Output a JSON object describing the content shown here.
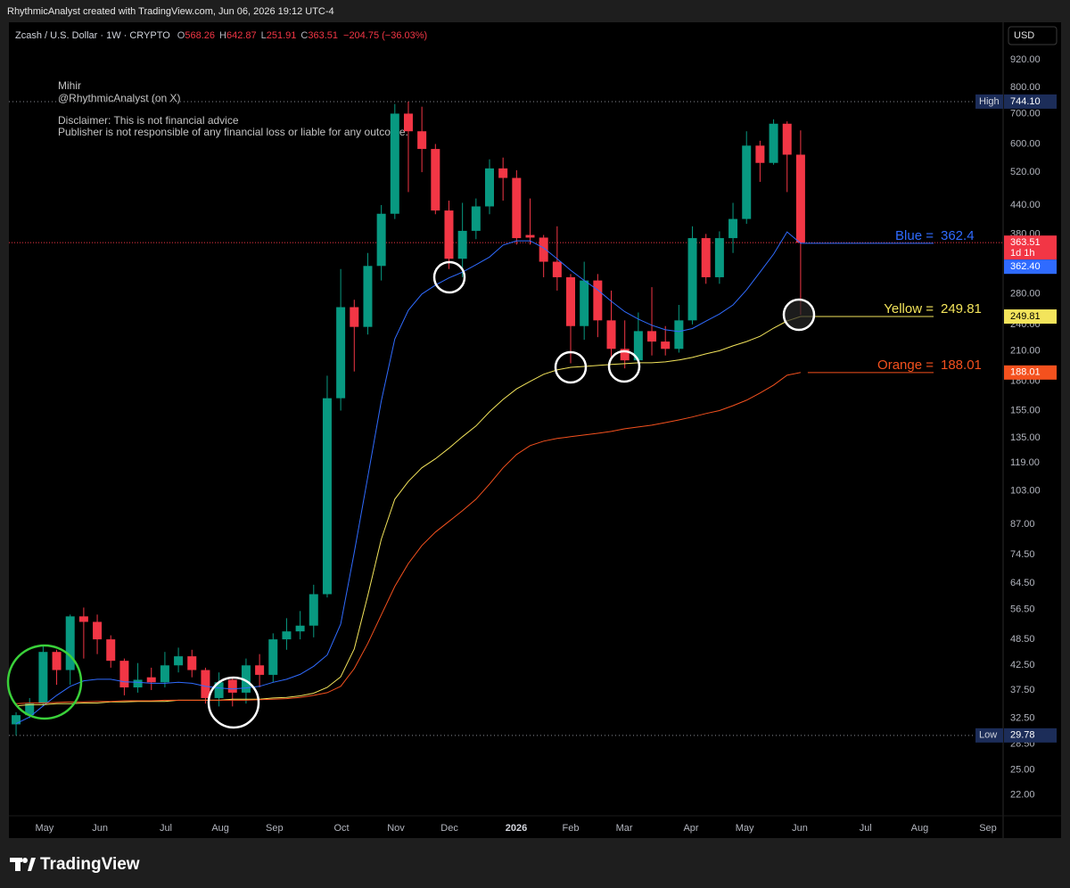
{
  "chart_data": {
    "type": "candlestick",
    "attribution": "RhythmicAnalyst created with TradingView.com, Jun 06, 2026 19:12 UTC-4",
    "title": "Zcash / U.S. Dollar · 1W · CRYPTO",
    "ohlc_letters": [
      "O",
      "H",
      "L",
      "C"
    ],
    "change": "−204.75 (−36.03%)",
    "annotations": [
      "Mihir",
      "@RhythmicAnalyst (on X)",
      "Disclaimer: This is not financial advice",
      "Publisher is not responsible of any financial loss or liable for any outcome."
    ],
    "currency": "USD",
    "brand": "TradingView",
    "log_scale": true,
    "up_color": "#089981",
    "down_color": "#f23645",
    "x": [
      0,
      1,
      2,
      3,
      4,
      5,
      6,
      7,
      8,
      9,
      10,
      11,
      12,
      13,
      14,
      15,
      16,
      17,
      18,
      19,
      20,
      21,
      22,
      23,
      24,
      25,
      26,
      27,
      28,
      29,
      30,
      31,
      32,
      33,
      34,
      35,
      36,
      37,
      38,
      39,
      40,
      41,
      42,
      43,
      44,
      45,
      46,
      47,
      48,
      49,
      50,
      51,
      52,
      53,
      54,
      55,
      56,
      57,
      58
    ],
    "xlim": [
      -0.53,
      72.97
    ],
    "xticks": [
      {
        "value": 2.1,
        "label": "May"
      },
      {
        "value": 6.2,
        "label": "Jun"
      },
      {
        "value": 11.07,
        "label": "Jul"
      },
      {
        "value": 15.1,
        "label": "Aug"
      },
      {
        "value": 19.1,
        "label": "Sep"
      },
      {
        "value": 24.06,
        "label": "Oct"
      },
      {
        "value": 28.08,
        "label": "Nov"
      },
      {
        "value": 32.04,
        "label": "Dec"
      },
      {
        "value": 36.98,
        "label": "2026"
      },
      {
        "value": 41.0,
        "label": "Feb"
      },
      {
        "value": 44.96,
        "label": "Mar"
      },
      {
        "value": 49.9,
        "label": "Apr"
      },
      {
        "value": 53.86,
        "label": "May"
      },
      {
        "value": 57.94,
        "label": "Jun"
      },
      {
        "value": 62.8,
        "label": "Jul"
      },
      {
        "value": 66.8,
        "label": "Aug"
      },
      {
        "value": 71.85,
        "label": "Sep"
      }
    ],
    "open": [
      31.5,
      33,
      35,
      45.5,
      41.5,
      54.5,
      53,
      48.5,
      43.5,
      38,
      40,
      39,
      42.5,
      44.5,
      41.5,
      36,
      39.5,
      37,
      42.5,
      40.5,
      48.5,
      50.5,
      52,
      61,
      165,
      262,
      237,
      323,
      421,
      700,
      640,
      585,
      428,
      335,
      386,
      437,
      530,
      505,
      378,
      373,
      330,
      305,
      238,
      300,
      245,
      212,
      200,
      232,
      220,
      212,
      245,
      372,
      305,
      372,
      410,
      595,
      545,
      665,
      568.26
    ],
    "high": [
      33.5,
      36,
      47,
      46,
      55,
      57,
      55,
      49.5,
      44,
      43,
      42,
      45.5,
      46.5,
      46,
      42,
      41,
      40,
      44,
      45,
      50,
      54,
      56,
      64,
      185,
      318,
      272,
      345,
      440,
      735,
      744.1,
      725,
      600,
      450,
      445,
      455,
      555,
      560,
      525,
      455,
      378,
      395,
      310,
      330,
      310,
      285,
      245,
      255,
      290,
      238,
      265,
      395,
      380,
      385,
      445,
      640,
      610,
      680,
      673,
      642.87
    ],
    "low": [
      29.78,
      32.5,
      34.5,
      38.5,
      38.5,
      44,
      45,
      42,
      36.5,
      37,
      37.5,
      38,
      41,
      40,
      35,
      34.5,
      34.5,
      35,
      38,
      39,
      46,
      48.5,
      49,
      60,
      155,
      189,
      228,
      300,
      410,
      470,
      520,
      420,
      318,
      305,
      370,
      420,
      450,
      360,
      360,
      305,
      285,
      197,
      222,
      225,
      200,
      192,
      198,
      205,
      205,
      208,
      240,
      295,
      295,
      345,
      400,
      495,
      540,
      470,
      251.91
    ],
    "close": [
      33,
      35,
      45.5,
      41.5,
      54.5,
      53,
      48.5,
      43.5,
      38,
      39.5,
      39,
      42.5,
      44.5,
      41.5,
      36,
      39,
      37,
      42.5,
      40.5,
      48.5,
      50.5,
      52,
      61,
      165,
      262,
      237,
      323,
      421,
      700,
      640,
      585,
      428,
      335,
      386,
      437,
      530,
      505,
      372,
      373,
      330,
      305,
      238,
      300,
      245,
      212,
      200,
      232,
      220,
      212,
      245,
      372,
      305,
      372,
      410,
      595,
      545,
      665,
      568.26,
      363.51
    ],
    "countdown": "1d 1h",
    "series": [
      {
        "name": "Blue =",
        "color": "#2f6bff",
        "axis_label": "362.40",
        "values": [
          31.6,
          32.7,
          34.6,
          36.5,
          38.2,
          39.3,
          39.6,
          39.6,
          39.1,
          39.0,
          38.8,
          38.8,
          39.0,
          38.8,
          38.2,
          37.9,
          37.7,
          37.9,
          38.2,
          39.0,
          39.6,
          40.6,
          42.3,
          44.8,
          52.4,
          75.4,
          110.7,
          162.6,
          223,
          258,
          280,
          293,
          304,
          313,
          325,
          338,
          359,
          367,
          367,
          354,
          335,
          316,
          300,
          286,
          270,
          256,
          246.6,
          239,
          233.6,
          231.5,
          235,
          244,
          253,
          265,
          286,
          313,
          343,
          384,
          362.4
        ]
      },
      {
        "name": "Yellow =",
        "color": "#f3e45b",
        "values": [
          34.6,
          34.8,
          34.8,
          35.0,
          35.0,
          35.1,
          35.1,
          35.3,
          35.3,
          35.4,
          35.4,
          35.4,
          35.6,
          35.6,
          35.6,
          35.6,
          35.8,
          35.8,
          35.8,
          36.0,
          36.1,
          36.4,
          36.9,
          38.0,
          40.1,
          46.2,
          60.6,
          80.6,
          98.8,
          108.2,
          115.9,
          121.3,
          128,
          135.7,
          143.3,
          154,
          164,
          173,
          179.7,
          186.3,
          190.5,
          193,
          193.9,
          194.9,
          195.8,
          196.6,
          197.5,
          197.5,
          198.4,
          200.3,
          203,
          206.7,
          210,
          215.3,
          220,
          226,
          235.6,
          244.3,
          249.81
        ]
      },
      {
        "name": "Orange =",
        "color": "#f4511e",
        "values": [
          35.0,
          35.1,
          35.1,
          35.2,
          35.3,
          35.3,
          35.4,
          35.4,
          35.5,
          35.5,
          35.5,
          35.6,
          35.6,
          35.6,
          35.6,
          35.6,
          35.6,
          35.6,
          35.7,
          35.8,
          35.9,
          36.1,
          36.5,
          37.0,
          38.2,
          41.8,
          47.5,
          54.9,
          63.5,
          71.3,
          78.1,
          83.6,
          88.3,
          93.2,
          98.8,
          106.7,
          115.9,
          124,
          129.7,
          132.7,
          134.5,
          135.7,
          136.9,
          138.1,
          139.4,
          141.3,
          142.6,
          143.9,
          145.8,
          147.8,
          150,
          152.7,
          155,
          158.9,
          163.3,
          169.4,
          176.4,
          185.4,
          188.01
        ]
      }
    ],
    "ylim": [
      19.8,
      1113
    ],
    "yticks": [
      {
        "value": 920,
        "label": "920.00"
      },
      {
        "value": 800,
        "label": "800.00"
      },
      {
        "value": 700,
        "label": "700.00"
      },
      {
        "value": 600,
        "label": "600.00"
      },
      {
        "value": 520,
        "label": "520.00"
      },
      {
        "value": 440,
        "label": "440.00"
      },
      {
        "value": 380,
        "label": "380.00"
      },
      {
        "value": 280,
        "label": "280.00"
      },
      {
        "value": 240,
        "label": "240.00"
      },
      {
        "value": 210,
        "label": "210.00"
      },
      {
        "value": 180,
        "label": "180.00"
      },
      {
        "value": 155,
        "label": "155.00"
      },
      {
        "value": 135,
        "label": "135.00"
      },
      {
        "value": 119,
        "label": "119.00"
      },
      {
        "value": 103,
        "label": "103.00"
      },
      {
        "value": 87,
        "label": "87.00"
      },
      {
        "value": 74.5,
        "label": "74.50"
      },
      {
        "value": 64.5,
        "label": "64.50"
      },
      {
        "value": 56.5,
        "label": "56.50"
      },
      {
        "value": 48.5,
        "label": "48.50"
      },
      {
        "value": 42.5,
        "label": "42.50"
      },
      {
        "value": 37.5,
        "label": "37.50"
      },
      {
        "value": 32.5,
        "label": "32.50"
      },
      {
        "value": 28.5,
        "label": "28.50"
      },
      {
        "value": 25,
        "label": "25.00"
      },
      {
        "value": 22,
        "label": "22.00"
      }
    ],
    "high_marker": {
      "text": "High",
      "value": 744.1,
      "label": "744.10"
    },
    "low_marker": {
      "text": "Low",
      "value": 29.78
    }
  }
}
